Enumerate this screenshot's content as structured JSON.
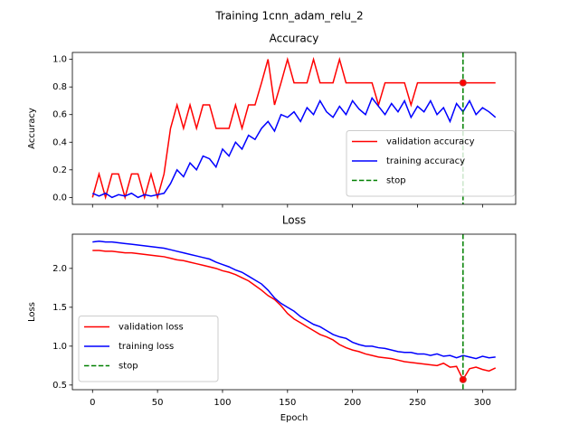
{
  "title": "Training 1cnn_adam_relu_2",
  "chart_data": [
    {
      "type": "line",
      "title": "Accuracy",
      "ylabel": "Accuracy",
      "x": [
        0,
        5,
        10,
        15,
        20,
        25,
        30,
        35,
        40,
        45,
        50,
        55,
        60,
        65,
        70,
        75,
        80,
        85,
        90,
        95,
        100,
        105,
        110,
        115,
        120,
        125,
        130,
        135,
        140,
        145,
        150,
        155,
        160,
        165,
        170,
        175,
        180,
        185,
        190,
        195,
        200,
        205,
        210,
        215,
        220,
        225,
        230,
        235,
        240,
        245,
        250,
        255,
        260,
        265,
        270,
        275,
        280,
        285,
        290,
        295,
        300,
        305,
        310
      ],
      "series": [
        {
          "name": "validation accuracy",
          "color": "#ff0000",
          "values": [
            0,
            0.17,
            0,
            0.17,
            0.17,
            0,
            0.17,
            0.17,
            0,
            0.17,
            0,
            0.17,
            0.5,
            0.67,
            0.5,
            0.67,
            0.5,
            0.67,
            0.67,
            0.5,
            0.5,
            0.5,
            0.67,
            0.5,
            0.67,
            0.67,
            0.83,
            1.0,
            0.67,
            0.83,
            1.0,
            0.83,
            0.83,
            0.83,
            1.0,
            0.83,
            0.83,
            0.83,
            1.0,
            0.83,
            0.83,
            0.83,
            0.83,
            0.83,
            0.67,
            0.83,
            0.83,
            0.83,
            0.83,
            0.67,
            0.83,
            0.83,
            0.83,
            0.83,
            0.83,
            0.83,
            0.83,
            0.83,
            0.83,
            0.83,
            0.83,
            0.83,
            0.83
          ]
        },
        {
          "name": "training accuracy",
          "color": "#0000ff",
          "values": [
            0.03,
            0.01,
            0.03,
            0,
            0.02,
            0.01,
            0.03,
            0,
            0.02,
            0.01,
            0.02,
            0.03,
            0.1,
            0.2,
            0.15,
            0.25,
            0.2,
            0.3,
            0.28,
            0.22,
            0.35,
            0.3,
            0.4,
            0.35,
            0.45,
            0.42,
            0.5,
            0.55,
            0.48,
            0.6,
            0.58,
            0.62,
            0.55,
            0.65,
            0.6,
            0.7,
            0.62,
            0.58,
            0.66,
            0.6,
            0.7,
            0.64,
            0.6,
            0.72,
            0.66,
            0.6,
            0.68,
            0.62,
            0.7,
            0.58,
            0.66,
            0.62,
            0.7,
            0.6,
            0.65,
            0.55,
            0.68,
            0.62,
            0.7,
            0.6,
            0.65,
            0.62,
            0.58
          ]
        }
      ],
      "vlines": [
        {
          "name": "stop",
          "x": 285,
          "color": "#008000"
        }
      ],
      "marker_series": 0,
      "xlim": [
        -15.5,
        325.5
      ],
      "xticks": [
        0,
        50,
        100,
        150,
        200,
        250,
        300
      ],
      "xticklabels": false,
      "ylim": [
        -0.05,
        1.05
      ],
      "yticks": [
        {
          "value": 0,
          "label": "0.0"
        },
        0.2,
        0.4,
        0.6,
        0.8,
        {
          "value": 1,
          "label": "1.0"
        }
      ],
      "legend": "lower right"
    },
    {
      "type": "line",
      "title": "Loss",
      "ylabel": "Loss",
      "xlabel": "Epoch",
      "x": [
        0,
        5,
        10,
        15,
        20,
        25,
        30,
        35,
        40,
        45,
        50,
        55,
        60,
        65,
        70,
        75,
        80,
        85,
        90,
        95,
        100,
        105,
        110,
        115,
        120,
        125,
        130,
        135,
        140,
        145,
        150,
        155,
        160,
        165,
        170,
        175,
        180,
        185,
        190,
        195,
        200,
        205,
        210,
        215,
        220,
        225,
        230,
        235,
        240,
        245,
        250,
        255,
        260,
        265,
        270,
        275,
        280,
        285,
        290,
        295,
        300,
        305,
        310
      ],
      "series": [
        {
          "name": "validation loss",
          "color": "#ff0000",
          "values": [
            2.23,
            2.23,
            2.22,
            2.22,
            2.21,
            2.2,
            2.2,
            2.19,
            2.18,
            2.17,
            2.16,
            2.15,
            2.13,
            2.11,
            2.1,
            2.08,
            2.06,
            2.04,
            2.02,
            2.0,
            1.97,
            1.95,
            1.92,
            1.88,
            1.84,
            1.78,
            1.72,
            1.65,
            1.6,
            1.52,
            1.42,
            1.35,
            1.3,
            1.25,
            1.2,
            1.15,
            1.12,
            1.08,
            1.02,
            0.98,
            0.95,
            0.93,
            0.9,
            0.88,
            0.86,
            0.85,
            0.84,
            0.82,
            0.8,
            0.79,
            0.78,
            0.77,
            0.76,
            0.75,
            0.78,
            0.73,
            0.74,
            0.57,
            0.71,
            0.73,
            0.7,
            0.68,
            0.72
          ]
        },
        {
          "name": "training loss",
          "color": "#0000ff",
          "values": [
            2.34,
            2.35,
            2.34,
            2.34,
            2.33,
            2.32,
            2.31,
            2.3,
            2.29,
            2.28,
            2.27,
            2.26,
            2.24,
            2.22,
            2.2,
            2.18,
            2.16,
            2.14,
            2.12,
            2.08,
            2.05,
            2.02,
            1.98,
            1.95,
            1.9,
            1.85,
            1.8,
            1.72,
            1.62,
            1.55,
            1.5,
            1.45,
            1.38,
            1.33,
            1.28,
            1.25,
            1.2,
            1.15,
            1.12,
            1.1,
            1.05,
            1.02,
            1.0,
            1.0,
            0.98,
            0.97,
            0.95,
            0.93,
            0.92,
            0.92,
            0.9,
            0.9,
            0.88,
            0.9,
            0.87,
            0.88,
            0.85,
            0.88,
            0.86,
            0.84,
            0.87,
            0.85,
            0.86
          ]
        }
      ],
      "vlines": [
        {
          "name": "stop",
          "x": 285,
          "color": "#008000"
        }
      ],
      "marker_series": 0,
      "xlim": [
        -15.5,
        325.5
      ],
      "xticks": [
        0,
        50,
        100,
        150,
        200,
        250,
        300
      ],
      "xticklabels": true,
      "ylim": [
        0.44,
        2.44
      ],
      "yticks": [
        0.5,
        {
          "value": 1,
          "label": "1.0"
        },
        1.5,
        {
          "value": 2,
          "label": "2.0"
        }
      ],
      "legend": "lower left"
    }
  ]
}
